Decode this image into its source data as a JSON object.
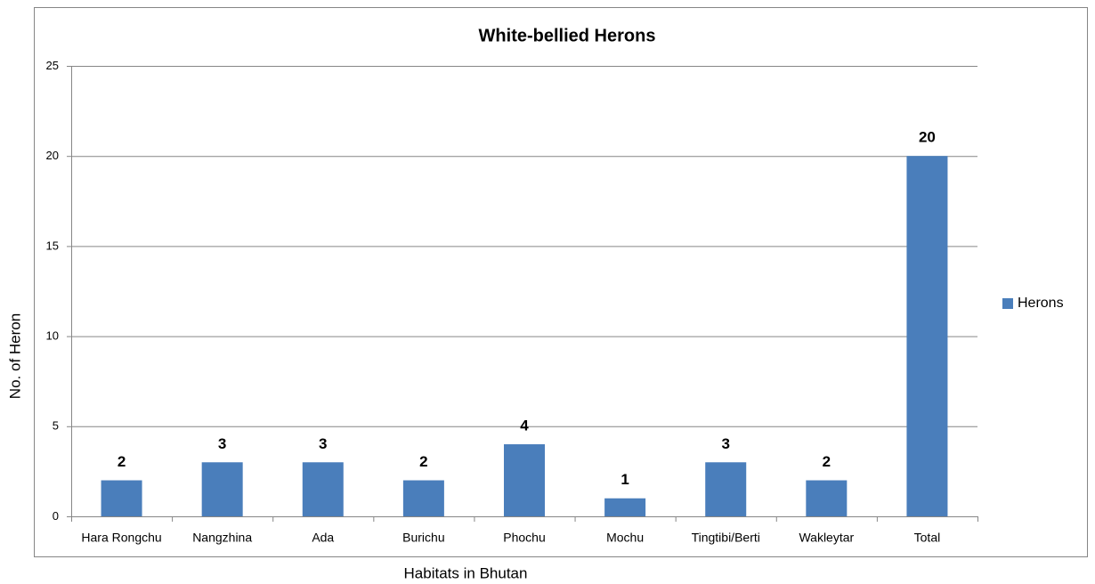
{
  "chart_data": {
    "type": "bar",
    "title": "White-bellied Herons",
    "x_label": "Habitats in Bhutan",
    "y_label": "No. of Heron",
    "categories": [
      "Hara Rongchu",
      "Nangzhina",
      "Ada",
      "Burichu",
      "Phochu",
      "Mochu",
      "Tingtibi/Berti",
      "Wakleytar",
      "Total"
    ],
    "series": [
      {
        "name": "Herons",
        "color": "#4a7ebb",
        "values": [
          2,
          3,
          3,
          2,
          4,
          1,
          3,
          2,
          20
        ]
      }
    ],
    "ylim": [
      0,
      25
    ],
    "yticks": [
      0,
      5,
      10,
      15,
      20,
      25
    ],
    "grid": true,
    "legend": "right"
  }
}
